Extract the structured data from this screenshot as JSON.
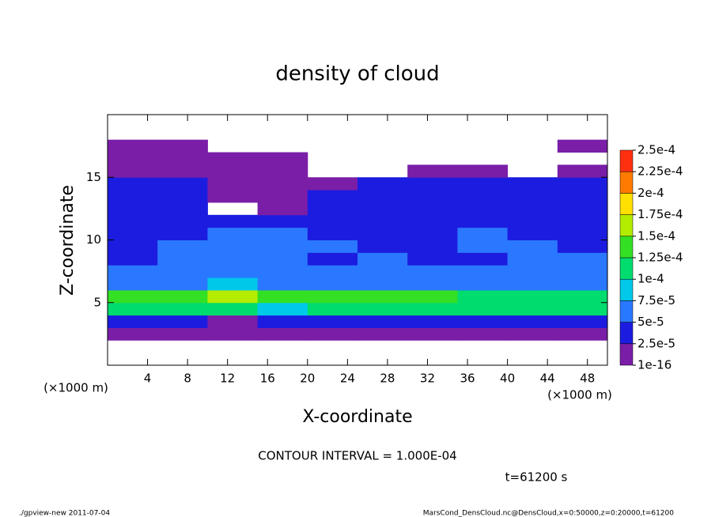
{
  "chart_data": {
    "type": "heatmap",
    "title": "density of cloud",
    "x_label": "X-coordinate",
    "y_label": "Z-coordinate",
    "x": [
      2.5,
      7.5,
      12.5,
      17.5,
      22.5,
      27.5,
      32.5,
      37.5,
      42.5,
      47.5
    ],
    "y": [
      0.5,
      1.5,
      2.5,
      3.5,
      4.5,
      5.5,
      6.5,
      7.5,
      8.5,
      9.5,
      10.5,
      11.5,
      12.5,
      13.5,
      14.5,
      15.5,
      16.5,
      17.5,
      18.5,
      19.5
    ],
    "values": [
      [
        null,
        null,
        null,
        null,
        null,
        null,
        null,
        null,
        null,
        null
      ],
      [
        null,
        null,
        null,
        null,
        null,
        null,
        null,
        null,
        null,
        null
      ],
      [
        1e-06,
        1e-06,
        1e-06,
        1e-06,
        1e-06,
        1e-06,
        1e-06,
        1e-06,
        1e-06,
        1e-06
      ],
      [
        3e-05,
        3.5e-05,
        2e-05,
        3e-05,
        3e-05,
        3e-05,
        3e-05,
        3e-05,
        3e-05,
        3e-05
      ],
      [
        0.000105,
        0.00011,
        0.000115,
        9e-05,
        0.000105,
        0.00011,
        0.00011,
        0.0001,
        0.000105,
        0.0001
      ],
      [
        0.00013,
        0.00014,
        0.00016,
        0.000125,
        0.00013,
        0.00014,
        0.000135,
        0.00012,
        0.00011,
        0.00011
      ],
      [
        6e-05,
        7e-05,
        8e-05,
        6e-05,
        6e-05,
        7e-05,
        6.5e-05,
        6e-05,
        6e-05,
        7e-05
      ],
      [
        5.5e-05,
        6e-05,
        6e-05,
        5.5e-05,
        5.5e-05,
        6e-05,
        5.5e-05,
        5.5e-05,
        5.5e-05,
        6e-05
      ],
      [
        4.5e-05,
        5e-05,
        5.5e-05,
        5e-05,
        4.5e-05,
        5e-05,
        4.5e-05,
        4.5e-05,
        5e-05,
        5e-05
      ],
      [
        4.5e-05,
        5e-05,
        5.5e-05,
        5.5e-05,
        5e-05,
        4.5e-05,
        4.5e-05,
        5e-05,
        5e-05,
        4.5e-05
      ],
      [
        4e-05,
        4.5e-05,
        5e-05,
        5e-05,
        4.5e-05,
        4e-05,
        4.5e-05,
        5e-05,
        4e-05,
        4e-05
      ],
      [
        3e-05,
        3.5e-05,
        3.5e-05,
        4e-05,
        3.5e-05,
        3e-05,
        3e-05,
        3.5e-05,
        3.5e-05,
        3e-05
      ],
      [
        3e-05,
        3e-05,
        null,
        2e-05,
        3e-05,
        3e-05,
        3e-05,
        3e-05,
        3e-05,
        3e-05
      ],
      [
        3e-05,
        2.8e-05,
        1.5e-05,
        2e-05,
        3e-05,
        3e-05,
        3e-05,
        3e-05,
        3e-05,
        3e-05
      ],
      [
        3e-05,
        2.8e-05,
        1.5e-05,
        1e-05,
        2e-05,
        3e-05,
        3e-05,
        3e-05,
        3e-05,
        3e-05
      ],
      [
        2e-05,
        1e-05,
        1e-05,
        1e-05,
        null,
        null,
        1e-05,
        1e-05,
        null,
        1e-05
      ],
      [
        1e-05,
        1e-05,
        1e-05,
        1e-05,
        null,
        null,
        null,
        null,
        null,
        null
      ],
      [
        1e-05,
        1e-05,
        null,
        null,
        null,
        null,
        null,
        null,
        null,
        1e-05
      ],
      [
        null,
        null,
        null,
        null,
        null,
        null,
        null,
        null,
        null,
        null
      ],
      [
        null,
        null,
        null,
        null,
        null,
        null,
        null,
        null,
        null,
        null
      ]
    ],
    "xlim": [
      0,
      50
    ],
    "ylim": [
      0,
      20
    ],
    "xticks": [
      4,
      8,
      12,
      16,
      20,
      24,
      28,
      32,
      36,
      40,
      44,
      48
    ],
    "yticks": [
      5,
      10,
      15
    ],
    "levels": [
      {
        "value": 1e-16,
        "label": "1e-16"
      },
      {
        "value": 2.5e-05,
        "label": "2.5e-5"
      },
      {
        "value": 5e-05,
        "label": "5e-5"
      },
      {
        "value": 7.5e-05,
        "label": "7.5e-5"
      },
      {
        "value": 0.0001,
        "label": "1e-4"
      },
      {
        "value": 0.000125,
        "label": "1.25e-4"
      },
      {
        "value": 0.00015,
        "label": "1.5e-4"
      },
      {
        "value": 0.000175,
        "label": "1.75e-4"
      },
      {
        "value": 0.0002,
        "label": "2e-4"
      },
      {
        "value": 0.000225,
        "label": "2.25e-4"
      },
      {
        "value": 0.00025,
        "label": "2.5e-4"
      }
    ],
    "colors": [
      "#7a1ea8",
      "#1c1ce0",
      "#2a78ff",
      "#00c8e8",
      "#00dc6e",
      "#34e024",
      "#b4ec00",
      "#ffe000",
      "#ff7a00",
      "#ff3010"
    ],
    "annotations": [
      "(×1000 m)",
      "(×1000 m)",
      "CONTOUR INTERVAL = 1.000E-04",
      "t=61200 s",
      "./gpview-new  2011-07-04",
      "MarsCond_DensCloud.nc@DensCloud,x=0:50000,z=0:20000,t=61200"
    ]
  }
}
